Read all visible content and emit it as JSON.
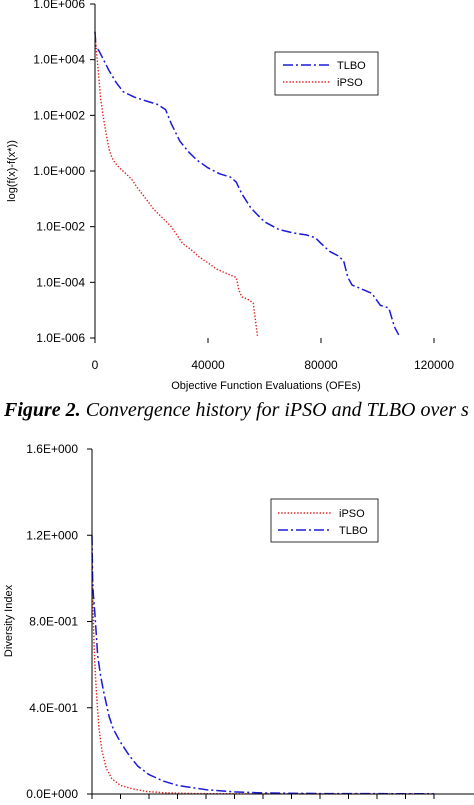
{
  "caption": {
    "prefix": "Figure 2.",
    "text": " Convergence history for iPSO and TLBO over s"
  },
  "colors": {
    "tlbo": "#1a1adb",
    "ipso": "#e02020",
    "axis": "#000000"
  },
  "chart_data": [
    {
      "type": "line",
      "title": "",
      "xlabel": "Objective Function Evaluations (OFEs)",
      "ylabel": "log(f(x)-f(x*))",
      "yscale": "log",
      "xlim": [
        0,
        120000
      ],
      "ylim": [
        1e-06,
        1000000.0
      ],
      "xticks": [
        0,
        40000,
        80000,
        120000
      ],
      "xtick_labels": [
        "0",
        "40000",
        "80000",
        "120000"
      ],
      "yticks": [
        1000000.0,
        10000.0,
        100.0,
        1.0,
        0.01,
        0.0001,
        1e-06
      ],
      "ytick_labels": [
        "1.0E+006",
        "1.0E+004",
        "1.0E+002",
        "1.0E+000",
        "1.0E-002",
        "1.0E-004",
        "1.0E-006"
      ],
      "grid": false,
      "legend_position": "top-right",
      "series": [
        {
          "name": "TLBO",
          "style": "dash-dot",
          "color_key": "tlbo",
          "x": [
            0,
            300,
            1500,
            3000,
            5000,
            7500,
            10000,
            14000,
            18000,
            22000,
            25000,
            27000,
            30000,
            33000,
            36000,
            40000,
            44000,
            48000,
            50000,
            52000,
            55000,
            57000,
            60000,
            65000,
            70000,
            75000,
            78000,
            80000,
            83000,
            86000,
            88000,
            89500,
            91000,
            94000,
            98000,
            101000,
            104000,
            106000,
            107500
          ],
          "y": [
            100000.0,
            30000,
            20000,
            10000,
            4000,
            1500,
            700,
            450,
            330,
            250,
            160,
            50,
            12,
            5,
            2.5,
            1.3,
            0.8,
            0.6,
            0.4,
            0.15,
            0.05,
            0.03,
            0.015,
            0.008,
            0.006,
            0.005,
            0.004,
            0.0025,
            0.0013,
            0.0009,
            0.0006,
            0.00015,
            8e-05,
            6e-05,
            4e-05,
            1.5e-05,
            1.2e-05,
            2.5e-06,
            1.3e-06
          ]
        },
        {
          "name": "iPSO",
          "style": "dotted",
          "color_key": "ipso",
          "x": [
            0,
            500,
            1000,
            1500,
            2000,
            3000,
            4000,
            5000,
            6000,
            7000,
            9000,
            11000,
            13000,
            15000,
            18000,
            21000,
            24000,
            27000,
            29000,
            31000,
            34000,
            37000,
            40000,
            43000,
            46000,
            48000,
            50000,
            51000,
            52000,
            54000,
            56000,
            57500
          ],
          "y": [
            100000.0,
            20000,
            6000,
            1500,
            400,
            80,
            20,
            6,
            3,
            2,
            1.2,
            0.8,
            0.5,
            0.25,
            0.1,
            0.04,
            0.02,
            0.01,
            0.005,
            0.0025,
            0.0015,
            0.0008,
            0.0005,
            0.0003,
            0.00022,
            0.00018,
            0.00015,
            5e-05,
            3e-05,
            2.5e-05,
            1.8e-05,
            1.2e-06
          ]
        }
      ]
    },
    {
      "type": "line",
      "title": "",
      "xlabel": "",
      "ylabel": "Diversity Index",
      "xlim": [
        0,
        120000
      ],
      "ylim": [
        0,
        1.6
      ],
      "xticks": [
        0,
        10000,
        20000,
        30000,
        40000,
        50000,
        60000,
        70000,
        80000,
        90000,
        100000,
        110000,
        120000
      ],
      "yticks": [
        0,
        0.4,
        0.8,
        1.2,
        1.6
      ],
      "ytick_labels": [
        "0.0E+000",
        "4.0E-001",
        "8.0E-001",
        "1.2E+000",
        "1.6E+000"
      ],
      "grid": false,
      "legend_position": "top-right",
      "series": [
        {
          "name": "iPSO",
          "style": "dotted",
          "color_key": "ipso",
          "x": [
            0,
            300,
            700,
            1200,
            1800,
            2500,
            3500,
            5000,
            7000,
            10000,
            14000,
            19000,
            25000,
            35000,
            50000,
            80000,
            120000
          ],
          "y": [
            1.12,
            0.9,
            0.7,
            0.55,
            0.42,
            0.3,
            0.2,
            0.12,
            0.07,
            0.04,
            0.025,
            0.012,
            0.006,
            0.002,
            0.001,
            0.0005,
            0.0003
          ]
        },
        {
          "name": "TLBO",
          "style": "dash-dot",
          "color_key": "tlbo",
          "x": [
            0,
            200,
            500,
            1000,
            1500,
            2000,
            3000,
            4000,
            5000,
            6000,
            7500,
            10000,
            13000,
            16000,
            20000,
            25000,
            30000,
            40000,
            50000,
            60000,
            80000,
            120000
          ],
          "y": [
            1.2,
            1.0,
            0.92,
            0.84,
            0.74,
            0.64,
            0.55,
            0.48,
            0.42,
            0.36,
            0.3,
            0.24,
            0.18,
            0.13,
            0.09,
            0.06,
            0.04,
            0.02,
            0.01,
            0.005,
            0.002,
            0.001
          ]
        }
      ]
    }
  ]
}
